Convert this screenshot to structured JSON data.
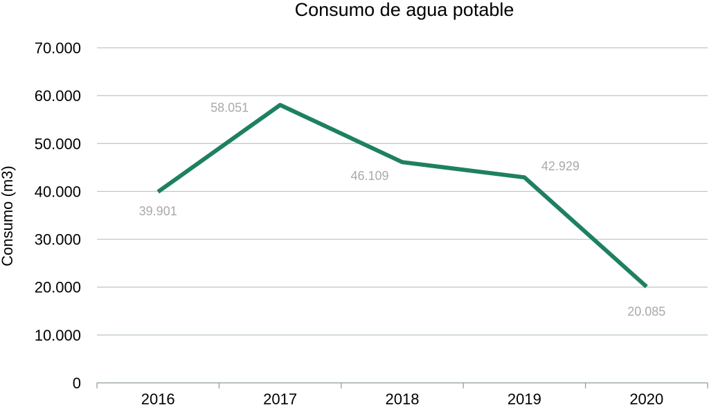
{
  "chart_data": {
    "type": "line",
    "title": "Consumo de agua potable",
    "xlabel": "",
    "ylabel": "Consumo (m3)",
    "categories": [
      "2016",
      "2017",
      "2018",
      "2019",
      "2020"
    ],
    "series": [
      {
        "values": [
          39901,
          58051,
          46109,
          42929,
          20085
        ],
        "data_labels": [
          "39.901",
          "58.051",
          "46.109",
          "42.929",
          "20.085"
        ],
        "color": "#1e8062"
      }
    ],
    "ylim": [
      0,
      70000
    ],
    "y_ticks": [
      {
        "value": 0,
        "label": "0"
      },
      {
        "value": 10000,
        "label": "10.000"
      },
      {
        "value": 20000,
        "label": "20.000"
      },
      {
        "value": 30000,
        "label": "30.000"
      },
      {
        "value": 40000,
        "label": "40.000"
      },
      {
        "value": 50000,
        "label": "50.000"
      },
      {
        "value": 60000,
        "label": "60.000"
      },
      {
        "value": 70000,
        "label": "70.000"
      }
    ],
    "grid": true,
    "legend": "none",
    "colors": {
      "line": "#1e8062",
      "gridline": "#b7c6c2",
      "axis": "#8a9a96",
      "data_label": "#a9a9a9"
    }
  }
}
